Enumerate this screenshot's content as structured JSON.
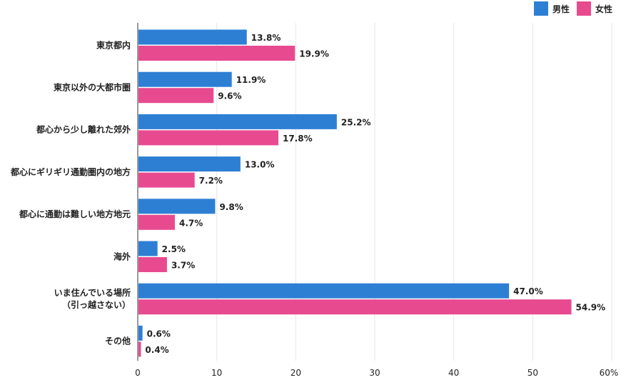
{
  "chart_data": {
    "type": "bar",
    "orientation": "horizontal",
    "categories": [
      [
        "東京都内"
      ],
      [
        "東京以外の大都市圏"
      ],
      [
        "都心から少し離れた郊外"
      ],
      [
        "都心にギリギリ通勤圏内の地方"
      ],
      [
        "都心に通勤は難しい地方地元"
      ],
      [
        "海外"
      ],
      [
        "いま住んでいる場所",
        "（引っ越さない）"
      ],
      [
        "その他"
      ]
    ],
    "series": [
      {
        "name": "男性",
        "color": "#2d7fd4",
        "values": [
          13.8,
          11.9,
          25.2,
          13.0,
          9.8,
          2.5,
          47.0,
          0.6
        ]
      },
      {
        "name": "女性",
        "color": "#e84a90",
        "values": [
          19.9,
          9.6,
          17.8,
          7.2,
          4.7,
          3.7,
          54.9,
          0.4
        ]
      }
    ],
    "xlim": [
      0,
      60
    ],
    "xticks": [
      "0",
      "10",
      "20",
      "30",
      "40",
      "50",
      "60%"
    ],
    "value_suffix": "%",
    "grid": "vertical",
    "legend_position": "top-right"
  }
}
